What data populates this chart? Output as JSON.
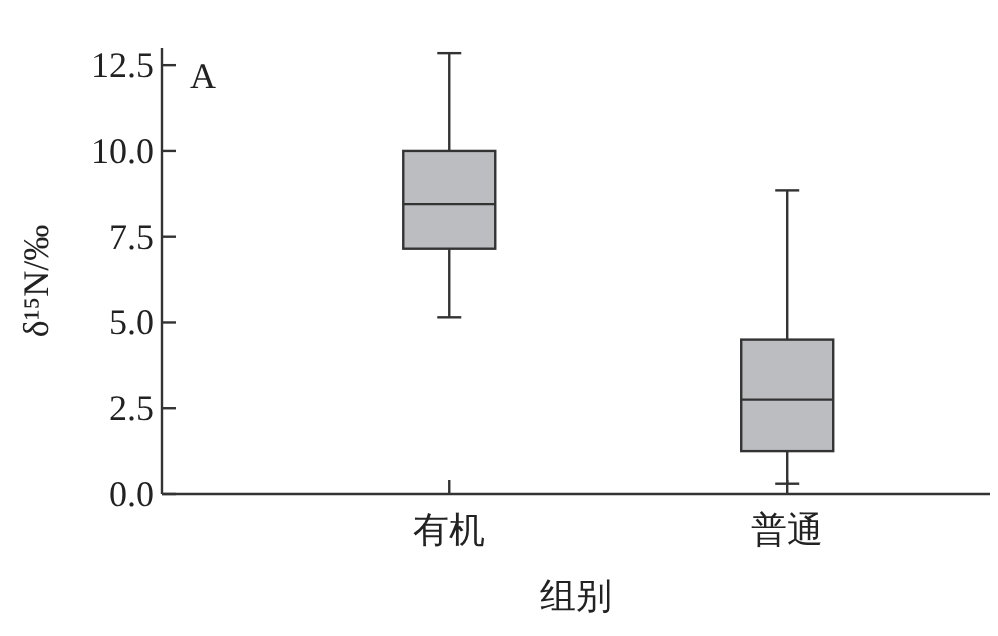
{
  "chart_data": {
    "type": "box",
    "xlabel": "组别",
    "ylabel": "δ¹⁵N/‰",
    "annotations": [
      "A"
    ],
    "categories": [
      "有机",
      "普通"
    ],
    "boxes": [
      {
        "low": 5.15,
        "q1": 7.15,
        "median": 8.45,
        "q3": 10.0,
        "high": 12.85
      },
      {
        "low": 0.3,
        "q1": 1.25,
        "median": 2.75,
        "q3": 4.5,
        "high": 8.85
      }
    ],
    "color": "#bcbdc1",
    "ylim": [
      0,
      13
    ],
    "yticks": [
      {
        "value": 0,
        "label": "0.0"
      },
      {
        "value": 2.5,
        "label": "2.5"
      },
      {
        "value": 5,
        "label": "5.0"
      },
      {
        "value": 7.5,
        "label": "7.5"
      },
      {
        "value": 10,
        "label": "10.0"
      },
      {
        "value": 12.5,
        "label": "12.5"
      }
    ],
    "grid": false
  }
}
